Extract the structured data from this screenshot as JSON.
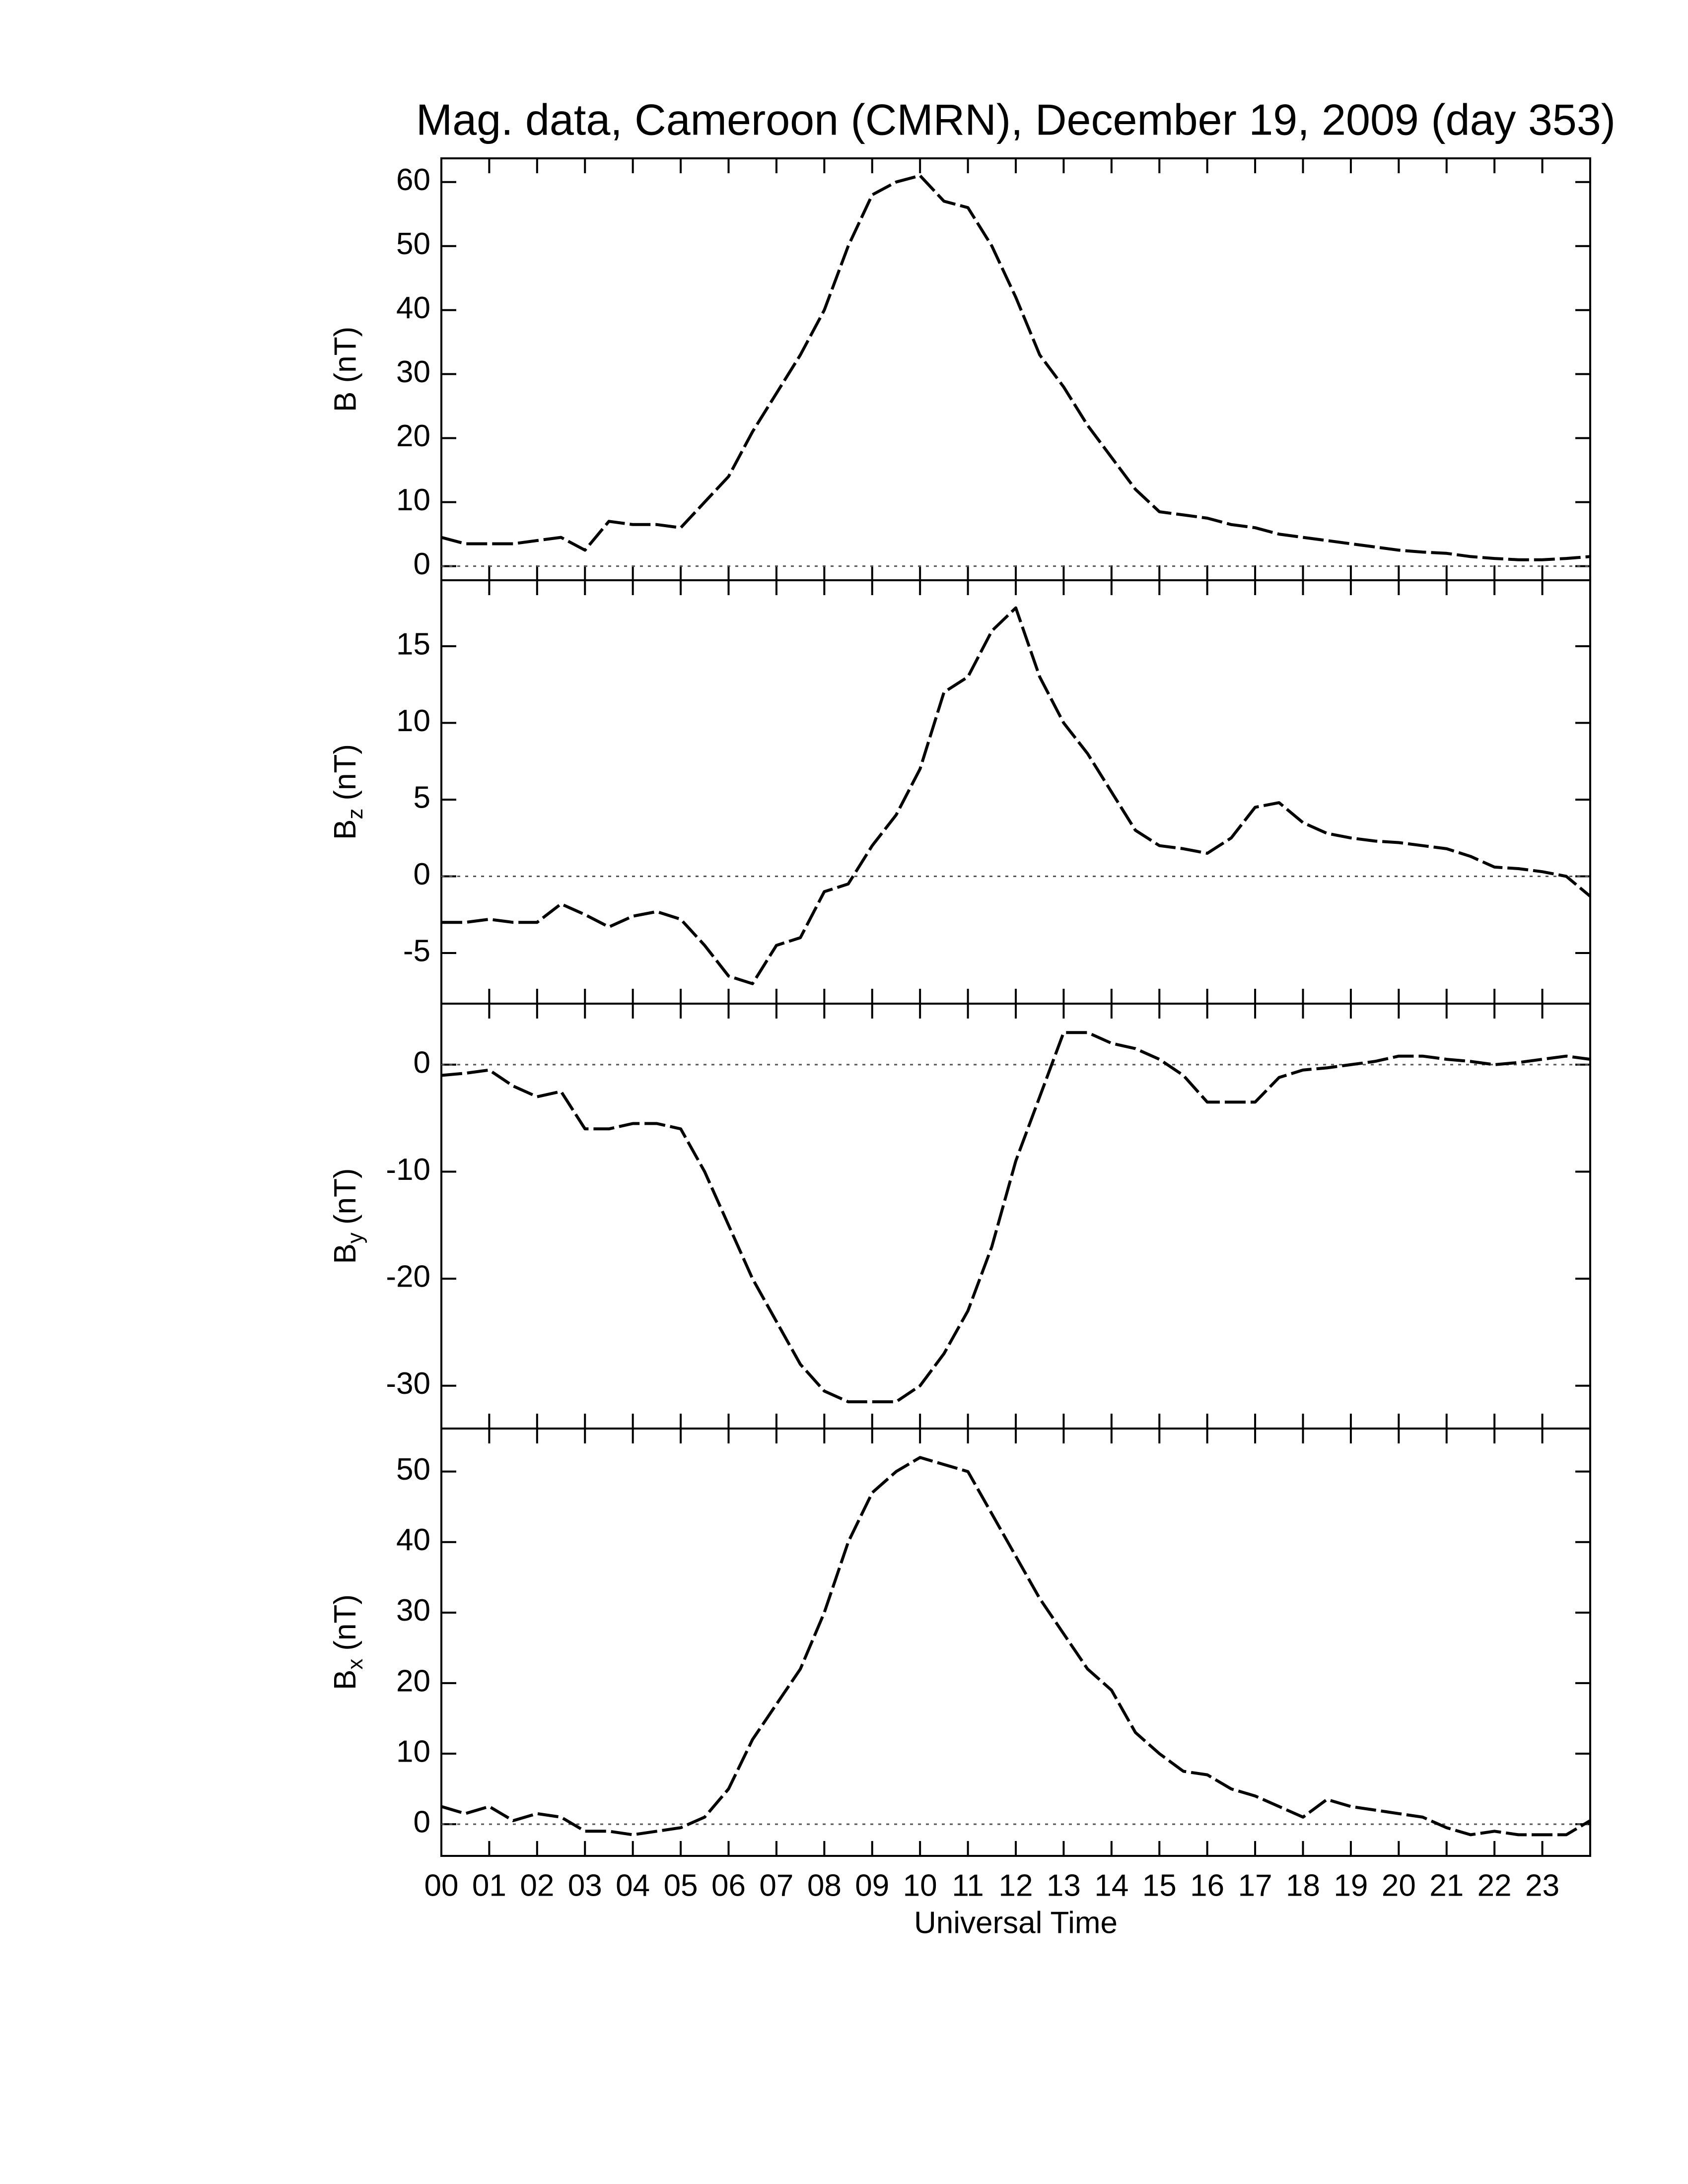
{
  "chart_data": [
    {
      "type": "line",
      "title": "Mag. data, Cameroon (CMRN), December 19, 2009 (day 353)",
      "ylabel": "B (nT)",
      "x": [
        0,
        0.5,
        1,
        1.5,
        2,
        2.5,
        3,
        3.5,
        4,
        4.5,
        5,
        5.5,
        6,
        6.5,
        7,
        7.5,
        8,
        8.5,
        9,
        9.5,
        10,
        10.5,
        11,
        11.5,
        12,
        12.5,
        13,
        13.5,
        14,
        14.5,
        15,
        15.5,
        16,
        16.5,
        17,
        17.5,
        18,
        18.5,
        19,
        19.5,
        20,
        20.5,
        21,
        21.5,
        22,
        22.5,
        23,
        23.5,
        24
      ],
      "values": [
        4.5,
        3.5,
        3.5,
        3.5,
        4,
        4.5,
        2.5,
        7,
        6.5,
        6.5,
        6,
        10,
        14,
        21,
        27,
        33,
        40,
        50,
        58,
        60,
        61,
        57,
        56,
        50,
        42,
        33,
        28,
        22,
        17,
        12,
        8.5,
        8,
        7.5,
        6.5,
        6,
        5,
        4.5,
        4,
        3.5,
        3,
        2.5,
        2.2,
        2,
        1.5,
        1.2,
        1,
        1,
        1.2,
        1.5
      ],
      "color": "#000000",
      "xlim": [
        0,
        24
      ],
      "ylim": [
        -2.2,
        63.7
      ],
      "yticks": [
        0,
        10,
        20,
        30,
        40,
        50,
        60
      ],
      "zero_line": true
    },
    {
      "type": "line",
      "ylabel": "B",
      "ylabel_sub": "z",
      "ylabel_unit": "(nT)",
      "x": [
        0,
        0.5,
        1,
        1.5,
        2,
        2.5,
        3,
        3.5,
        4,
        4.5,
        5,
        5.5,
        6,
        6.5,
        7,
        7.5,
        8,
        8.5,
        9,
        9.5,
        10,
        10.5,
        11,
        11.5,
        12,
        12.5,
        13,
        13.5,
        14,
        14.5,
        15,
        15.5,
        16,
        16.5,
        17,
        17.5,
        18,
        18.5,
        19,
        19.5,
        20,
        20.5,
        21,
        21.5,
        22,
        22.5,
        23,
        23.5,
        24
      ],
      "values": [
        -3,
        -3,
        -2.8,
        -3,
        -3,
        -1.8,
        -2.5,
        -3.3,
        -2.6,
        -2.3,
        -2.8,
        -4.5,
        -6.5,
        -7,
        -4.5,
        -4,
        -1,
        -0.5,
        2,
        4,
        7,
        12,
        13,
        16,
        17.5,
        13,
        10,
        8,
        5.5,
        3,
        2,
        1.8,
        1.5,
        2.5,
        4.5,
        4.8,
        3.5,
        2.8,
        2.5,
        2.3,
        2.2,
        2,
        1.8,
        1.3,
        0.6,
        0.5,
        0.3,
        0,
        -1.3
      ],
      "color": "#000000",
      "xlim": [
        0,
        24
      ],
      "ylim": [
        -8.3,
        19.3
      ],
      "yticks": [
        -5,
        0,
        5,
        10,
        15
      ],
      "zero_line": true
    },
    {
      "type": "line",
      "ylabel": "B",
      "ylabel_sub": "y",
      "ylabel_unit": "(nT)",
      "x": [
        0,
        0.5,
        1,
        1.5,
        2,
        2.5,
        3,
        3.5,
        4,
        4.5,
        5,
        5.5,
        6,
        6.5,
        7,
        7.5,
        8,
        8.5,
        9,
        9.5,
        10,
        10.5,
        11,
        11.5,
        12,
        12.5,
        13,
        13.5,
        14,
        14.5,
        15,
        15.5,
        16,
        16.5,
        17,
        17.5,
        18,
        18.5,
        19,
        19.5,
        20,
        20.5,
        21,
        21.5,
        22,
        22.5,
        23,
        23.5,
        24
      ],
      "values": [
        -1,
        -0.8,
        -0.5,
        -2,
        -3,
        -2.5,
        -6,
        -6,
        -5.5,
        -5.5,
        -6,
        -10,
        -15,
        -20,
        -24,
        -28,
        -30.5,
        -31.5,
        -31.5,
        -31.5,
        -30,
        -27,
        -23,
        -17,
        -9,
        -3,
        3,
        3,
        2,
        1.5,
        0.5,
        -1,
        -3.5,
        -3.5,
        -3.5,
        -1.2,
        -0.5,
        -0.3,
        0,
        0.3,
        0.8,
        0.8,
        0.5,
        0.3,
        0,
        0.2,
        0.5,
        0.8,
        0.5
      ],
      "color": "#000000",
      "xlim": [
        0,
        24
      ],
      "ylim": [
        -34.0,
        5.7
      ],
      "yticks": [
        -30,
        -20,
        -10,
        0
      ],
      "zero_line": true
    },
    {
      "type": "line",
      "ylabel": "B",
      "ylabel_sub": "x",
      "ylabel_unit": "(nT)",
      "xlabel": "Universal Time",
      "x": [
        0,
        0.5,
        1,
        1.5,
        2,
        2.5,
        3,
        3.5,
        4,
        4.5,
        5,
        5.5,
        6,
        6.5,
        7,
        7.5,
        8,
        8.5,
        9,
        9.5,
        10,
        10.5,
        11,
        11.5,
        12,
        12.5,
        13,
        13.5,
        14,
        14.5,
        15,
        15.5,
        16,
        16.5,
        17,
        17.5,
        18,
        18.5,
        19,
        19.5,
        20,
        20.5,
        21,
        21.5,
        22,
        22.5,
        23,
        23.5,
        24
      ],
      "values": [
        2.5,
        1.5,
        2.5,
        0.5,
        1.5,
        1,
        -1,
        -1,
        -1.5,
        -1,
        -0.5,
        1,
        5,
        12,
        17,
        22,
        30,
        40,
        47,
        50,
        52,
        51,
        50,
        44,
        38,
        32,
        27,
        22,
        19,
        13,
        10,
        7.5,
        7,
        5,
        4,
        2.5,
        1,
        3.5,
        2.5,
        2,
        1.5,
        1,
        -0.5,
        -1.5,
        -1,
        -1.5,
        -1.5,
        -1.5,
        0.5
      ],
      "color": "#000000",
      "xlim": [
        0,
        24
      ],
      "ylim": [
        -4.5,
        56.1
      ],
      "yticks": [
        0,
        10,
        20,
        30,
        40,
        50
      ],
      "zero_line": true,
      "xticks": [
        {
          "value": 0,
          "label": "00"
        },
        {
          "value": 1,
          "label": "01"
        },
        {
          "value": 2,
          "label": "02"
        },
        {
          "value": 3,
          "label": "03"
        },
        {
          "value": 4,
          "label": "04"
        },
        {
          "value": 5,
          "label": "05"
        },
        {
          "value": 6,
          "label": "06"
        },
        {
          "value": 7,
          "label": "07"
        },
        {
          "value": 8,
          "label": "08"
        },
        {
          "value": 9,
          "label": "09"
        },
        {
          "value": 10,
          "label": "10"
        },
        {
          "value": 11,
          "label": "11"
        },
        {
          "value": 12,
          "label": "12"
        },
        {
          "value": 13,
          "label": "13"
        },
        {
          "value": 14,
          "label": "14"
        },
        {
          "value": 15,
          "label": "15"
        },
        {
          "value": 16,
          "label": "16"
        },
        {
          "value": 17,
          "label": "17"
        },
        {
          "value": 18,
          "label": "18"
        },
        {
          "value": 19,
          "label": "19"
        },
        {
          "value": 20,
          "label": "20"
        },
        {
          "value": 21,
          "label": "21"
        },
        {
          "value": 22,
          "label": "22"
        },
        {
          "value": 23,
          "label": "23"
        }
      ]
    }
  ]
}
